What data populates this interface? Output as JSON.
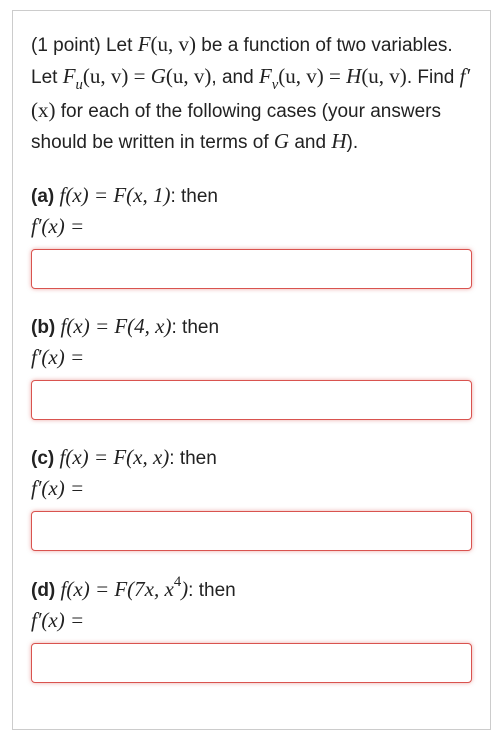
{
  "intro": {
    "points_label": "(1 point) ",
    "line1_a": "Let ",
    "F": "F",
    "uv_args": "(u, v)",
    "line1_b": " be a function of two variables. Let ",
    "Fu": "F",
    "sub_u": "u",
    "eq": " = ",
    "G": "G",
    "line1_c": ", and ",
    "Fv": "F",
    "sub_v": "v",
    "H": "H",
    "line1_d": ". Find ",
    "fprime": "f′",
    "x_arg": "(x)",
    "line1_e": " for each of the following cases (your answers should be written in terms of ",
    "and": " and ",
    "line1_f": ")."
  },
  "common": {
    "fx_eq": "f(x) = ",
    "then": ": then",
    "fprime_eq": "f′(x) ="
  },
  "parts": {
    "a": {
      "label": "(a) ",
      "rhs": "F(x, 1)"
    },
    "b": {
      "label": "(b) ",
      "rhs": "F(4, x)"
    },
    "c": {
      "label": "(c) ",
      "rhs": "F(x, x)"
    },
    "d": {
      "label": "(d) ",
      "rhs_pre": "F(7x, x",
      "exp": "4",
      "rhs_post": ")"
    }
  },
  "styling": {
    "input_border_color": "#d9534f",
    "input_bg": "#ffffff",
    "container_border": "#cccccc",
    "text_color": "#222222",
    "font_body": "Arial",
    "font_math": "Times New Roman"
  }
}
